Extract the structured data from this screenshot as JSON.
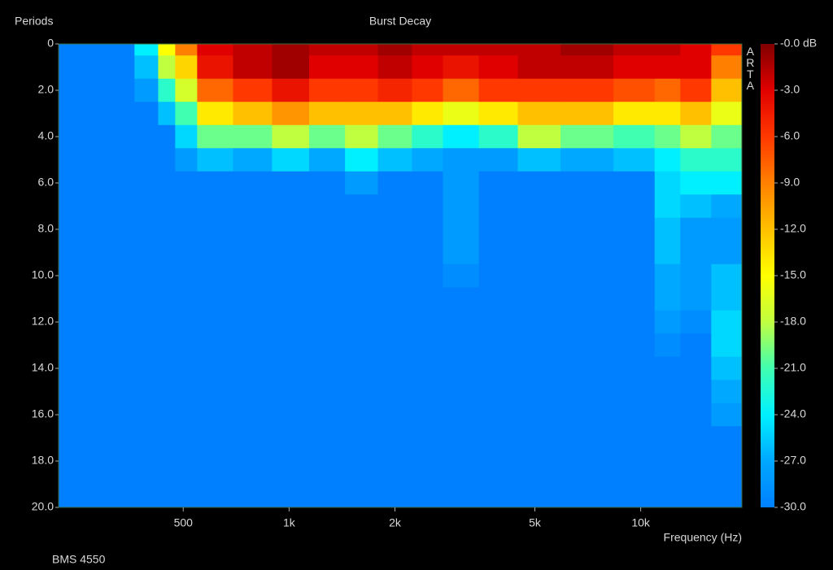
{
  "chart_data": {
    "type": "heatmap",
    "title": "Burst Decay",
    "x_label": "Frequency (Hz)",
    "y_label": "Periods",
    "note": "BMS 4550",
    "watermark": "ARTA",
    "x": [
      260,
      330,
      400,
      450,
      500,
      600,
      800,
      1000,
      1300,
      1600,
      2000,
      2500,
      3000,
      4000,
      5000,
      7000,
      10000,
      12000,
      14000,
      18000
    ],
    "y": [
      0,
      1,
      2,
      3,
      4,
      5,
      6,
      7,
      8,
      9,
      10,
      11,
      12,
      13,
      14,
      15,
      16,
      17,
      18,
      19,
      20
    ],
    "z": [
      [
        -30,
        -30,
        -30,
        -30,
        -30,
        -30,
        -30,
        -30,
        -30,
        -30,
        -30,
        -30,
        -30,
        -30,
        -30,
        -30,
        -30,
        -30,
        -30,
        -30,
        -30
      ],
      [
        -30,
        -30,
        -30,
        -30,
        -30,
        -30,
        -30,
        -30,
        -30,
        -30,
        -30,
        -30,
        -30,
        -30,
        -30,
        -30,
        -30,
        -30,
        -30,
        -30,
        -30
      ],
      [
        -24,
        -26,
        -28,
        -30,
        -30,
        -30,
        -30,
        -30,
        -30,
        -30,
        -30,
        -30,
        -30,
        -30,
        -30,
        -30,
        -30,
        -30,
        -30,
        -30,
        -30
      ],
      [
        -15,
        -18,
        -22,
        -26,
        -30,
        -30,
        -30,
        -30,
        -30,
        -30,
        -30,
        -30,
        -30,
        -30,
        -30,
        -30,
        -30,
        -30,
        -30,
        -30,
        -30
      ],
      [
        -9,
        -13,
        -17,
        -21,
        -25,
        -28,
        -30,
        -30,
        -30,
        -30,
        -30,
        -30,
        -30,
        -30,
        -30,
        -30,
        -30,
        -30,
        -30,
        -30,
        -30
      ],
      [
        -3,
        -4,
        -8,
        -14,
        -20,
        -26,
        -30,
        -30,
        -30,
        -30,
        -30,
        -30,
        -30,
        -30,
        -30,
        -30,
        -30,
        -30,
        -30,
        -30,
        -30
      ],
      [
        -2,
        -2,
        -6,
        -12,
        -20,
        -27,
        -30,
        -30,
        -30,
        -30,
        -30,
        -30,
        -30,
        -30,
        -30,
        -30,
        -30,
        -30,
        -30,
        -30,
        -30
      ],
      [
        -1,
        -1,
        -4,
        -10,
        -18,
        -25,
        -30,
        -30,
        -30,
        -30,
        -30,
        -30,
        -30,
        -30,
        -30,
        -30,
        -30,
        -30,
        -30,
        -30,
        -30
      ],
      [
        -2,
        -3,
        -6,
        -12,
        -20,
        -27,
        -30,
        -30,
        -30,
        -30,
        -30,
        -30,
        -30,
        -30,
        -30,
        -30,
        -30,
        -30,
        -30,
        -30,
        -30
      ],
      [
        -2,
        -3,
        -6,
        -12,
        -18,
        -24,
        -28,
        -30,
        -30,
        -30,
        -30,
        -30,
        -30,
        -30,
        -30,
        -30,
        -30,
        -30,
        -30,
        -30,
        -30
      ],
      [
        -1,
        -2,
        -5,
        -12,
        -20,
        -26,
        -30,
        -30,
        -30,
        -30,
        -30,
        -30,
        -30,
        -30,
        -30,
        -30,
        -30,
        -30,
        -30,
        -30,
        -30
      ],
      [
        -2,
        -3,
        -6,
        -14,
        -22,
        -27,
        -30,
        -30,
        -30,
        -30,
        -30,
        -30,
        -30,
        -30,
        -30,
        -30,
        -30,
        -30,
        -30,
        -30,
        -30
      ],
      [
        -2,
        -4,
        -8,
        -16,
        -24,
        -28,
        -28,
        -28,
        -28,
        -28,
        -29,
        -30,
        -30,
        -30,
        -30,
        -30,
        -30,
        -30,
        -30,
        -30,
        -30
      ],
      [
        -2,
        -3,
        -6,
        -14,
        -22,
        -28,
        -30,
        -30,
        -30,
        -30,
        -30,
        -30,
        -30,
        -30,
        -30,
        -30,
        -30,
        -30,
        -30,
        -30,
        -30
      ],
      [
        -2,
        -2,
        -6,
        -12,
        -18,
        -26,
        -30,
        -30,
        -30,
        -30,
        -30,
        -30,
        -30,
        -30,
        -30,
        -30,
        -30,
        -30,
        -30,
        -30,
        -30
      ],
      [
        -1,
        -2,
        -6,
        -12,
        -20,
        -27,
        -30,
        -30,
        -30,
        -30,
        -30,
        -30,
        -30,
        -30,
        -30,
        -30,
        -30,
        -30,
        -30,
        -30,
        -30
      ],
      [
        -2,
        -3,
        -7,
        -14,
        -21,
        -26,
        -30,
        -30,
        -30,
        -30,
        -30,
        -30,
        -30,
        -30,
        -30,
        -30,
        -30,
        -30,
        -30,
        -30,
        -30
      ],
      [
        -2,
        -3,
        -8,
        -14,
        -20,
        -24,
        -25,
        -25,
        -26,
        -26,
        -27,
        -27,
        -28,
        -29,
        -30,
        -30,
        -30,
        -30,
        -30,
        -30,
        -30
      ],
      [
        -3,
        -3,
        -6,
        -12,
        -18,
        -22,
        -24,
        -26,
        -28,
        -28,
        -28,
        -28,
        -29,
        -30,
        -30,
        -30,
        -30,
        -30,
        -30,
        -30,
        -30
      ],
      [
        -6,
        -9,
        -12,
        -16,
        -20,
        -22,
        -24,
        -27,
        -28,
        -28,
        -26,
        -26,
        -25,
        -25,
        -26,
        -27,
        -28,
        -30,
        -30,
        -30,
        -30
      ]
    ],
    "xlim": [
      221,
      19400
    ],
    "x_log": true,
    "xticks": [
      500,
      {
        "value": 1000,
        "label": "1k"
      },
      {
        "value": 2000,
        "label": "2k"
      },
      {
        "value": 5000,
        "label": "5k"
      },
      {
        "value": 10000,
        "label": "10k"
      }
    ],
    "ylim": [
      0,
      20
    ],
    "y_inverted": true,
    "yticks": [
      0,
      {
        "value": 2,
        "label": "2.0"
      },
      {
        "value": 4,
        "label": "4.0"
      },
      {
        "value": 6,
        "label": "6.0"
      },
      {
        "value": 8,
        "label": "8.0"
      },
      {
        "value": 10,
        "label": "10.0"
      },
      {
        "value": 12,
        "label": "12.0"
      },
      {
        "value": 14,
        "label": "14.0"
      },
      {
        "value": 16,
        "label": "16.0"
      },
      {
        "value": 18,
        "label": "18.0"
      },
      {
        "value": 20,
        "label": "20.0"
      }
    ],
    "clim": [
      -30,
      0
    ],
    "cticks": [
      {
        "value": 0,
        "label": "-0.0 dB"
      },
      {
        "value": -3,
        "label": "-3.0"
      },
      {
        "value": -6,
        "label": "-6.0"
      },
      {
        "value": -9,
        "label": "-9.0"
      },
      {
        "value": -12,
        "label": "-12.0"
      },
      {
        "value": -15,
        "label": "-15.0"
      },
      {
        "value": -18,
        "label": "-18.0"
      },
      {
        "value": -21,
        "label": "-21.0"
      },
      {
        "value": -24,
        "label": "-24.0"
      },
      {
        "value": -27,
        "label": "-27.0"
      },
      {
        "value": -30,
        "label": "-30.0"
      }
    ],
    "colormap": [
      "#0080ff",
      "#00a8ff",
      "#00f0ff",
      "#40ffb0",
      "#c0ff40",
      "#ffff00",
      "#ffc000",
      "#ff8000",
      "#ff3800",
      "#e00000",
      "#800000"
    ]
  }
}
